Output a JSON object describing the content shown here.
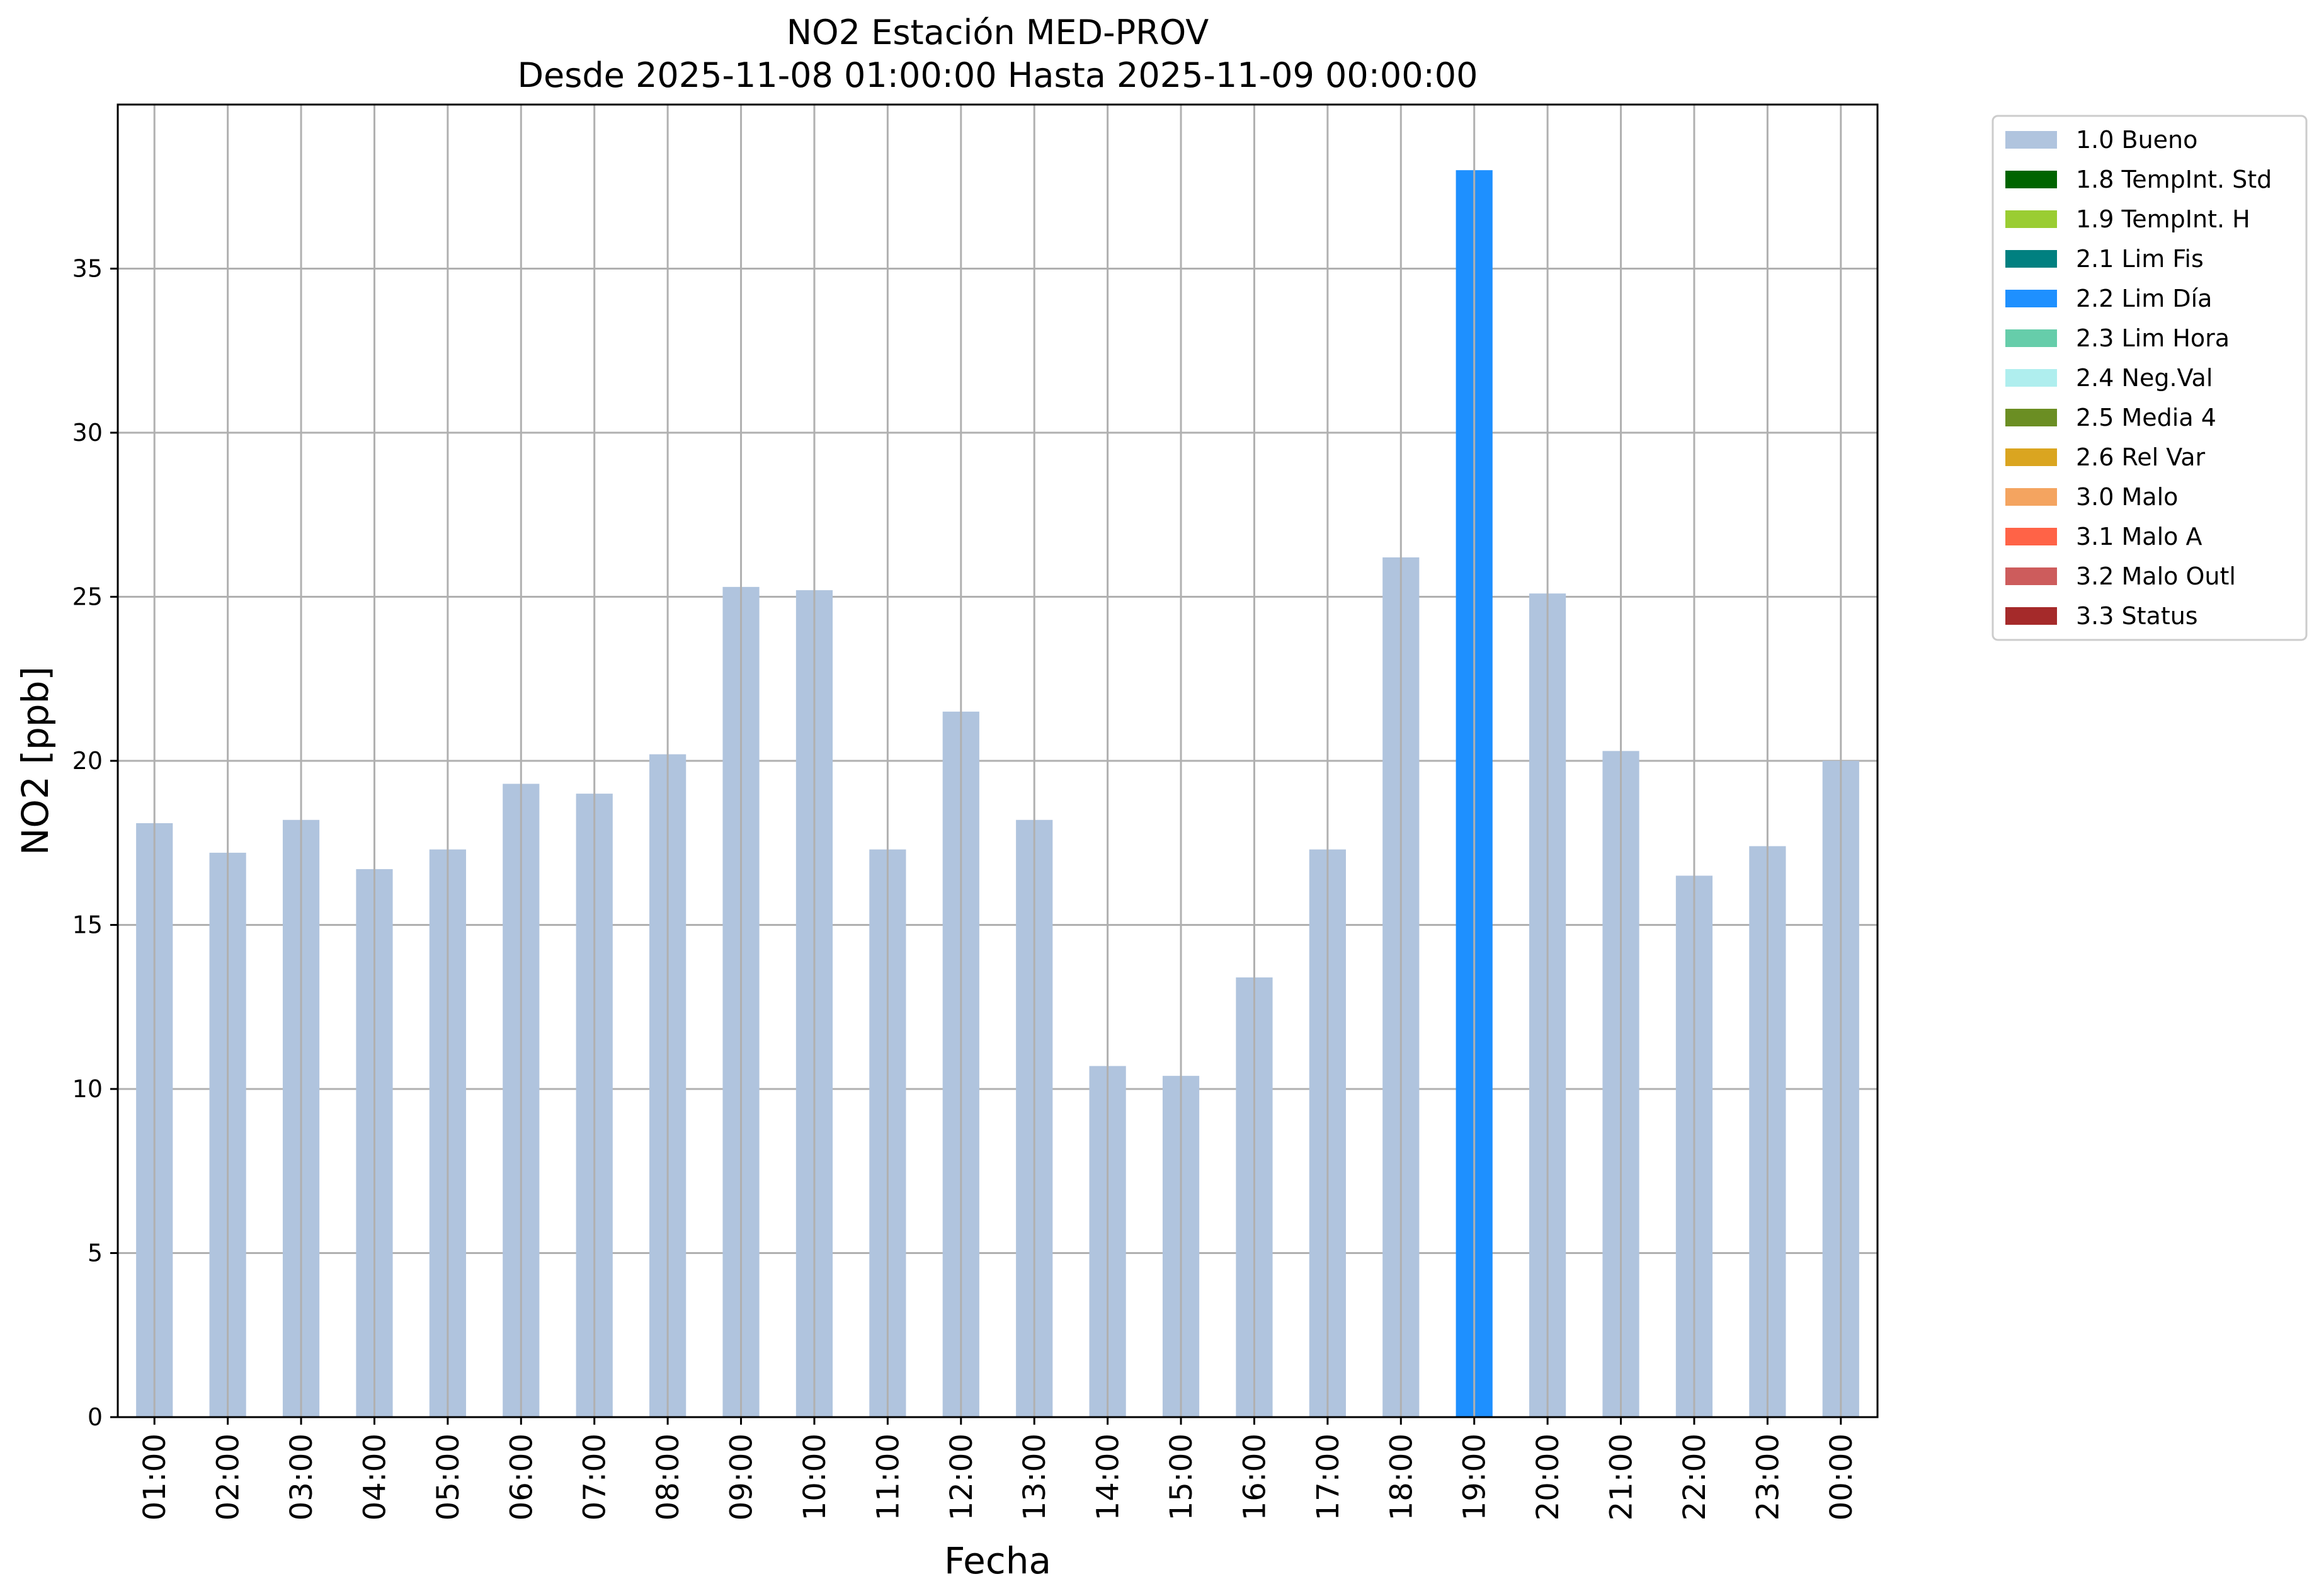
{
  "chart_data": {
    "type": "bar",
    "title": "NO2 Estación MED-PROV",
    "subtitle": "Desde 2025-11-08 01:00:00 Hasta 2025-11-09 00:00:00",
    "xlabel": "Fecha",
    "ylabel": "NO2 [ppb]",
    "ylim": [
      0,
      40
    ],
    "yticks": [
      "0",
      "5",
      "10",
      "15",
      "20",
      "25",
      "30",
      "35"
    ],
    "grid": true,
    "legend_placement": "outside-top-right",
    "categories": [
      "01:00",
      "02:00",
      "03:00",
      "04:00",
      "05:00",
      "06:00",
      "07:00",
      "08:00",
      "09:00",
      "10:00",
      "11:00",
      "12:00",
      "13:00",
      "14:00",
      "15:00",
      "16:00",
      "17:00",
      "18:00",
      "19:00",
      "20:00",
      "21:00",
      "22:00",
      "23:00",
      "00:00"
    ],
    "values": [
      18.1,
      17.2,
      18.2,
      16.7,
      17.3,
      19.3,
      19.0,
      20.2,
      25.3,
      25.2,
      17.3,
      21.5,
      18.2,
      10.7,
      10.4,
      13.4,
      17.3,
      26.2,
      38.0,
      25.1,
      20.3,
      16.5,
      17.4,
      20.0
    ],
    "flags": [
      "1.0",
      "1.0",
      "1.0",
      "1.0",
      "1.0",
      "1.0",
      "1.0",
      "1.0",
      "1.0",
      "1.0",
      "1.0",
      "1.0",
      "1.0",
      "1.0",
      "1.0",
      "1.0",
      "1.0",
      "1.0",
      "2.2",
      "1.0",
      "1.0",
      "1.0",
      "1.0",
      "1.0"
    ],
    "legend": [
      {
        "code": "1.0",
        "label": "1.0 Bueno",
        "color": "#b0c4de"
      },
      {
        "code": "1.8",
        "label": "1.8 TempInt. Std",
        "color": "#006400"
      },
      {
        "code": "1.9",
        "label": "1.9 TempInt. H",
        "color": "#9acd32"
      },
      {
        "code": "2.1",
        "label": "2.1 Lim Fis",
        "color": "#008080"
      },
      {
        "code": "2.2",
        "label": "2.2 Lim Día",
        "color": "#1e90ff"
      },
      {
        "code": "2.3",
        "label": "2.3 Lim Hora",
        "color": "#66cdaa"
      },
      {
        "code": "2.4",
        "label": "2.4 Neg.Val",
        "color": "#afeeee"
      },
      {
        "code": "2.5",
        "label": "2.5 Media 4",
        "color": "#6b8e23"
      },
      {
        "code": "2.6",
        "label": "2.6 Rel Var",
        "color": "#daa520"
      },
      {
        "code": "3.0",
        "label": "3.0 Malo",
        "color": "#f4a460"
      },
      {
        "code": "3.1",
        "label": "3.1 Malo A",
        "color": "#ff6347"
      },
      {
        "code": "3.2",
        "label": "3.2 Malo Outl",
        "color": "#cd5c5c"
      },
      {
        "code": "3.3",
        "label": "3.3 Status",
        "color": "#a52a2a"
      }
    ]
  }
}
